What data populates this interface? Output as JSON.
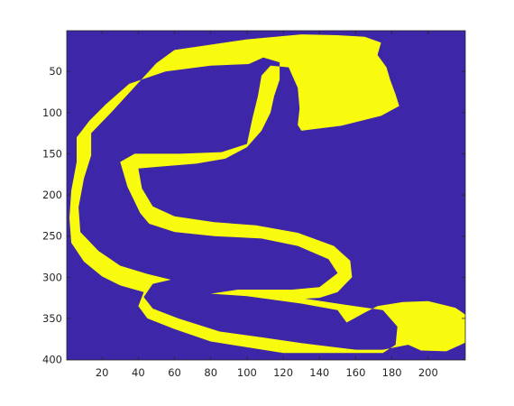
{
  "chart_data": {
    "type": "heatmap",
    "title": "",
    "xlabel": "",
    "ylabel": "",
    "xlim": [
      1,
      220
    ],
    "ylim": [
      1,
      400
    ],
    "y_direction": "reverse",
    "x_ticks": [
      20,
      40,
      60,
      80,
      100,
      120,
      140,
      160,
      180,
      200
    ],
    "y_ticks": [
      50,
      100,
      150,
      200,
      250,
      300,
      350,
      400
    ],
    "x_tick_labels": [
      "20",
      "40",
      "60",
      "80",
      "100",
      "120",
      "140",
      "160",
      "180",
      "200"
    ],
    "y_tick_labels": [
      "50",
      "100",
      "150",
      "200",
      "250",
      "300",
      "350",
      "400"
    ],
    "values": [
      0,
      1
    ],
    "colormap": {
      "0": "#3e26a8",
      "1": "#f9fb0e"
    },
    "mask_outline": [
      [
        60,
        24
      ],
      [
        100,
        11
      ],
      [
        130,
        5
      ],
      [
        150,
        6
      ],
      [
        165,
        8
      ],
      [
        174,
        15
      ],
      [
        172,
        30
      ],
      [
        177,
        45
      ],
      [
        179,
        60
      ],
      [
        182,
        78
      ],
      [
        184,
        92
      ],
      [
        174,
        104
      ],
      [
        152,
        116
      ],
      [
        130,
        122
      ],
      [
        128,
        115
      ],
      [
        129,
        95
      ],
      [
        128,
        70
      ],
      [
        123,
        45
      ],
      [
        113,
        43
      ],
      [
        108,
        55
      ],
      [
        106,
        80
      ],
      [
        103,
        107
      ],
      [
        100,
        138
      ],
      [
        86,
        148
      ],
      [
        63,
        150
      ],
      [
        38,
        150
      ],
      [
        30,
        160
      ],
      [
        34,
        190
      ],
      [
        41,
        222
      ],
      [
        46,
        235
      ],
      [
        60,
        245
      ],
      [
        82,
        250
      ],
      [
        108,
        253
      ],
      [
        128,
        262
      ],
      [
        145,
        278
      ],
      [
        150,
        295
      ],
      [
        140,
        312
      ],
      [
        125,
        315
      ],
      [
        95,
        315
      ],
      [
        80,
        320
      ],
      [
        100,
        323
      ],
      [
        130,
        332
      ],
      [
        150,
        340
      ],
      [
        155,
        355
      ],
      [
        165,
        343
      ],
      [
        172,
        335
      ],
      [
        186,
        330
      ],
      [
        200,
        329
      ],
      [
        215,
        337
      ],
      [
        225,
        352
      ],
      [
        225,
        375
      ],
      [
        210,
        390
      ],
      [
        196,
        389
      ],
      [
        189,
        382
      ],
      [
        175,
        388
      ],
      [
        160,
        388
      ],
      [
        130,
        380
      ],
      [
        105,
        372
      ],
      [
        85,
        366
      ],
      [
        62,
        350
      ],
      [
        48,
        338
      ],
      [
        43,
        324
      ],
      [
        48,
        308
      ],
      [
        58,
        303
      ],
      [
        45,
        296
      ],
      [
        30,
        286
      ],
      [
        18,
        268
      ],
      [
        8,
        245
      ],
      [
        7,
        215
      ],
      [
        10,
        180
      ],
      [
        14,
        152
      ],
      [
        14,
        125
      ],
      [
        25,
        100
      ],
      [
        40,
        64
      ],
      [
        50,
        40
      ]
    ],
    "background_outline": [
      [
        101,
        41
      ],
      [
        109,
        33
      ],
      [
        118,
        39
      ],
      [
        118,
        60
      ],
      [
        115,
        80
      ],
      [
        113,
        100
      ],
      [
        108,
        122
      ],
      [
        100,
        142
      ],
      [
        88,
        156
      ],
      [
        72,
        162
      ],
      [
        50,
        166
      ],
      [
        40,
        168
      ],
      [
        42,
        192
      ],
      [
        48,
        214
      ],
      [
        60,
        226
      ],
      [
        82,
        233
      ],
      [
        105,
        237
      ],
      [
        128,
        246
      ],
      [
        148,
        262
      ],
      [
        157,
        280
      ],
      [
        158,
        300
      ],
      [
        150,
        318
      ],
      [
        140,
        325
      ],
      [
        132,
        326
      ],
      [
        150,
        332
      ],
      [
        175,
        340
      ],
      [
        183,
        360
      ],
      [
        182,
        382
      ],
      [
        175,
        392
      ],
      [
        155,
        392
      ],
      [
        120,
        392
      ],
      [
        80,
        378
      ],
      [
        60,
        363
      ],
      [
        45,
        350
      ],
      [
        40,
        335
      ],
      [
        43,
        318
      ],
      [
        30,
        310
      ],
      [
        20,
        299
      ],
      [
        10,
        281
      ],
      [
        3,
        258
      ],
      [
        2,
        228
      ],
      [
        3,
        195
      ],
      [
        6,
        160
      ],
      [
        6,
        130
      ],
      [
        13,
        110
      ],
      [
        22,
        90
      ],
      [
        35,
        65
      ],
      [
        55,
        50
      ],
      [
        80,
        43
      ]
    ]
  }
}
